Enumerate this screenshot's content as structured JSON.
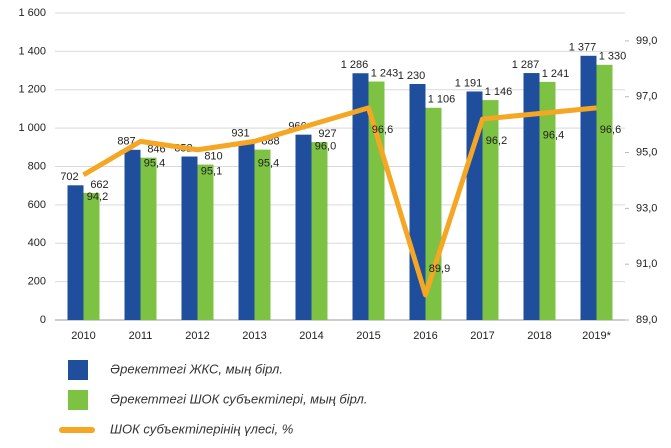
{
  "chart_data": {
    "type": "bar",
    "categories": [
      "2010",
      "2011",
      "2012",
      "2013",
      "2014",
      "2015",
      "2016",
      "2017",
      "2018",
      "2019*"
    ],
    "series": [
      {
        "name": "Әрекеттегі ЖКС, мың бірл.",
        "type": "bar",
        "color": "#1f4e9c",
        "values": [
          702,
          887,
          852,
          931,
          966,
          1286,
          1230,
          1191,
          1287,
          1377
        ],
        "value_labels": [
          "702",
          "887",
          "852",
          "931",
          "966",
          "1 286",
          "1 230",
          "1 191",
          "1 287",
          "1 377"
        ]
      },
      {
        "name": "Әрекеттегі ШОК субъектілері, мың бірл.",
        "type": "bar",
        "color": "#7dc242",
        "values": [
          662,
          846,
          810,
          888,
          927,
          1243,
          1106,
          1146,
          1241,
          1330
        ],
        "value_labels": [
          "662",
          "846",
          "810",
          "888",
          "927",
          "1 243",
          "1 106",
          "1 146",
          "1 241",
          "1 330"
        ]
      },
      {
        "name": "ШОК субъектілерінің үлесі, %",
        "type": "line",
        "axis": "y2",
        "color": "#f5a623",
        "values": [
          94.2,
          95.4,
          95.1,
          95.4,
          96.0,
          96.6,
          89.9,
          96.2,
          96.4,
          96.6
        ],
        "value_labels": [
          "94,2",
          "95,4",
          "95,1",
          "95,4",
          "96,0",
          "96,6",
          "89,9",
          "96,2",
          "96,4",
          "96,6"
        ]
      }
    ],
    "ylim": [
      0,
      1600
    ],
    "yticks": [
      0,
      200,
      400,
      600,
      800,
      {
        "value": 1000,
        "label": "1 000"
      },
      {
        "value": 1200,
        "label": "1 200"
      },
      {
        "value": 1400,
        "label": "1 400"
      },
      {
        "value": 1600,
        "label": "1 600"
      }
    ],
    "y2lim": [
      89,
      100
    ],
    "y2ticks": [
      {
        "value": 89,
        "label": "89,0"
      },
      {
        "value": 91,
        "label": "91,0"
      },
      {
        "value": 93,
        "label": "93,0"
      },
      {
        "value": 95,
        "label": "95,0"
      },
      {
        "value": 97,
        "label": "97,0"
      },
      {
        "value": 99,
        "label": "99,0"
      }
    ],
    "grid": true,
    "legend": "bottom"
  }
}
